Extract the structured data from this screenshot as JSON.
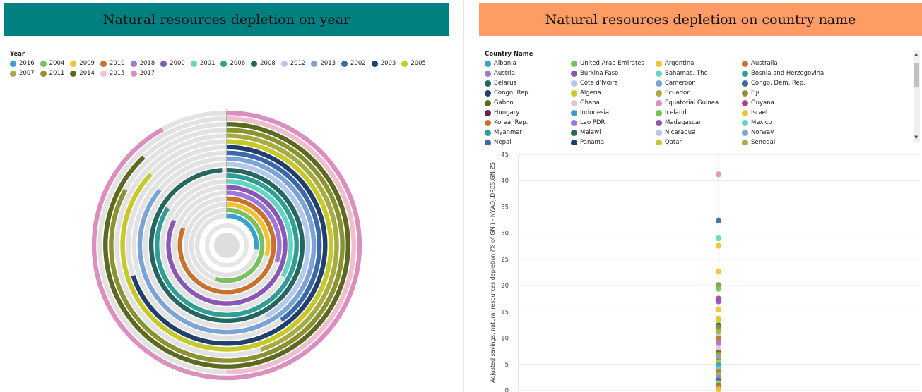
{
  "left": {
    "title": "Natural resources depletion on year",
    "legend_title": "Year"
  },
  "right": {
    "title": "Natural resources depletion on country name",
    "legend_title": "Country Name"
  },
  "colors": {
    "left_title_bg": "#008080",
    "right_title_bg": "#ff9c66",
    "track": "#e2e2e2"
  },
  "chart_data": [
    {
      "type": "radial-bar",
      "title": "Natural resources depletion on year",
      "legend_title": "Year",
      "years": [
        {
          "year": "2016",
          "color": "#3b9fd1",
          "fraction": 0.27
        },
        {
          "year": "2004",
          "color": "#7cbf5e",
          "fraction": 0.55
        },
        {
          "year": "2009",
          "color": "#f2c230",
          "fraction": 0.29
        },
        {
          "year": "2010",
          "color": "#c9722e",
          "fraction": 0.81
        },
        {
          "year": "2018",
          "color": "#9c79d6",
          "fraction": 0.3
        },
        {
          "year": "2000",
          "color": "#8a57b7",
          "fraction": 0.82
        },
        {
          "year": "2001",
          "color": "#62d6c3",
          "fraction": 0.33
        },
        {
          "year": "2006",
          "color": "#2f9e94",
          "fraction": 0.84
        },
        {
          "year": "2008",
          "color": "#246660",
          "fraction": 0.99
        },
        {
          "year": "2012",
          "color": "#b3c8ea",
          "fraction": 0.42
        },
        {
          "year": "2013",
          "color": "#7ba3d8",
          "fraction": 0.86
        },
        {
          "year": "2002",
          "color": "#3b68a8",
          "fraction": 0.4
        },
        {
          "year": "2003",
          "color": "#1f3f6e",
          "fraction": 0.7
        },
        {
          "year": "2005",
          "color": "#c6c929",
          "fraction": 0.87
        },
        {
          "year": "2007",
          "color": "#a6ac43",
          "fraction": 0.45
        },
        {
          "year": "2011",
          "color": "#8a9231",
          "fraction": 0.83
        },
        {
          "year": "2014",
          "color": "#5c6a1f",
          "fraction": 0.88
        },
        {
          "year": "2015",
          "color": "#efbfd0",
          "fraction": 0.5
        },
        {
          "year": "2017",
          "color": "#dc8fbf",
          "fraction": 0.92
        }
      ]
    },
    {
      "type": "scatter",
      "title": "Natural resources depletion on country name",
      "ylabel": "Adjusted savings: natural resources depletion (% of GNI) - NY.ADJ.DRES.GN.ZS",
      "xlabel": "",
      "ylim": [
        0,
        45
      ],
      "yticks": [
        0,
        5,
        10,
        15,
        20,
        25,
        30,
        35,
        40,
        45
      ],
      "grid": true,
      "countries": [
        {
          "name": "Albania",
          "color": "#3b9fd1"
        },
        {
          "name": "United Arab Emirates",
          "color": "#7cbf5e"
        },
        {
          "name": "Argentina",
          "color": "#f2c230"
        },
        {
          "name": "Australia",
          "color": "#c9722e"
        },
        {
          "name": "Austria",
          "color": "#9c79d6"
        },
        {
          "name": "Burkina Faso",
          "color": "#8a57b7"
        },
        {
          "name": "Bahamas, The",
          "color": "#62d6c3"
        },
        {
          "name": "Bosnia and Herzegovina",
          "color": "#2f9e94"
        },
        {
          "name": "Belarus",
          "color": "#246660"
        },
        {
          "name": "Cote d'Ivoire",
          "color": "#b3c8ea"
        },
        {
          "name": "Cameroon",
          "color": "#7ba3d8"
        },
        {
          "name": "Congo, Dem. Rep.",
          "color": "#3b68a8"
        },
        {
          "name": "Congo, Rep.",
          "color": "#1f3f6e"
        },
        {
          "name": "Algeria",
          "color": "#c6c929"
        },
        {
          "name": "Ecuador",
          "color": "#a6ac43"
        },
        {
          "name": "Fiji",
          "color": "#8a9231"
        },
        {
          "name": "Gabon",
          "color": "#5c6a1f"
        },
        {
          "name": "Ghana",
          "color": "#efbfd0"
        },
        {
          "name": "Equatorial Guinea",
          "color": "#dc8fbf"
        },
        {
          "name": "Guyana",
          "color": "#b5407f"
        },
        {
          "name": "Hungary",
          "color": "#6b1f4a"
        },
        {
          "name": "Indonesia",
          "color": "#3b9fd1"
        },
        {
          "name": "Iceland",
          "color": "#7cbf5e"
        },
        {
          "name": "Israel",
          "color": "#f2c230"
        },
        {
          "name": "Korea, Rep.",
          "color": "#c9722e"
        },
        {
          "name": "Lao PDR",
          "color": "#9c79d6"
        },
        {
          "name": "Madagascar",
          "color": "#8a57b7"
        },
        {
          "name": "Mexico",
          "color": "#62d6c3"
        },
        {
          "name": "Myanmar",
          "color": "#2f9e94"
        },
        {
          "name": "Malawi",
          "color": "#246660"
        },
        {
          "name": "Nicaragua",
          "color": "#b3c8ea"
        },
        {
          "name": "Norway",
          "color": "#7ba3d8"
        },
        {
          "name": "Nepal",
          "color": "#3b68a8"
        },
        {
          "name": "Panama",
          "color": "#1f3f6e"
        },
        {
          "name": "Qatar",
          "color": "#c6c929"
        },
        {
          "name": "Senegal",
          "color": "#a6ac43"
        }
      ],
      "points": [
        {
          "y": 41.2,
          "color": "#dc8fbf"
        },
        {
          "y": 32.4,
          "color": "#3b68a8"
        },
        {
          "y": 29.0,
          "color": "#62d6c3"
        },
        {
          "y": 27.6,
          "color": "#f2c230"
        },
        {
          "y": 22.7,
          "color": "#f2c230"
        },
        {
          "y": 20.1,
          "color": "#8a9231"
        },
        {
          "y": 19.4,
          "color": "#7cbf5e"
        },
        {
          "y": 17.5,
          "color": "#b5407f"
        },
        {
          "y": 17.0,
          "color": "#8a57b7"
        },
        {
          "y": 15.5,
          "color": "#f2c230"
        },
        {
          "y": 13.7,
          "color": "#c6c929"
        },
        {
          "y": 13.4,
          "color": "#f2c230"
        },
        {
          "y": 12.4,
          "color": "#246660"
        },
        {
          "y": 12.0,
          "color": "#8a9231"
        },
        {
          "y": 11.2,
          "color": "#a6ac43"
        },
        {
          "y": 10.2,
          "color": "#b3c8ea"
        },
        {
          "y": 9.9,
          "color": "#c9722e"
        },
        {
          "y": 9.0,
          "color": "#9c79d6"
        },
        {
          "y": 8.0,
          "color": "#efbfd0"
        },
        {
          "y": 7.2,
          "color": "#5c6a1f"
        },
        {
          "y": 6.8,
          "color": "#a6ac43"
        },
        {
          "y": 6.2,
          "color": "#7ba3d8"
        },
        {
          "y": 5.6,
          "color": "#8a9231"
        },
        {
          "y": 5.4,
          "color": "#c6c929"
        },
        {
          "y": 4.8,
          "color": "#3b9fd1"
        },
        {
          "y": 4.1,
          "color": "#62d6c3"
        },
        {
          "y": 3.6,
          "color": "#c9722e"
        },
        {
          "y": 3.0,
          "color": "#7cbf5e"
        },
        {
          "y": 2.4,
          "color": "#9c79d6"
        },
        {
          "y": 1.9,
          "color": "#3b68a8"
        },
        {
          "y": 1.4,
          "color": "#f2c230"
        },
        {
          "y": 1.0,
          "color": "#2f9e94"
        },
        {
          "y": 0.6,
          "color": "#c9722e"
        },
        {
          "y": 0.2,
          "color": "#f2c230"
        }
      ]
    }
  ]
}
